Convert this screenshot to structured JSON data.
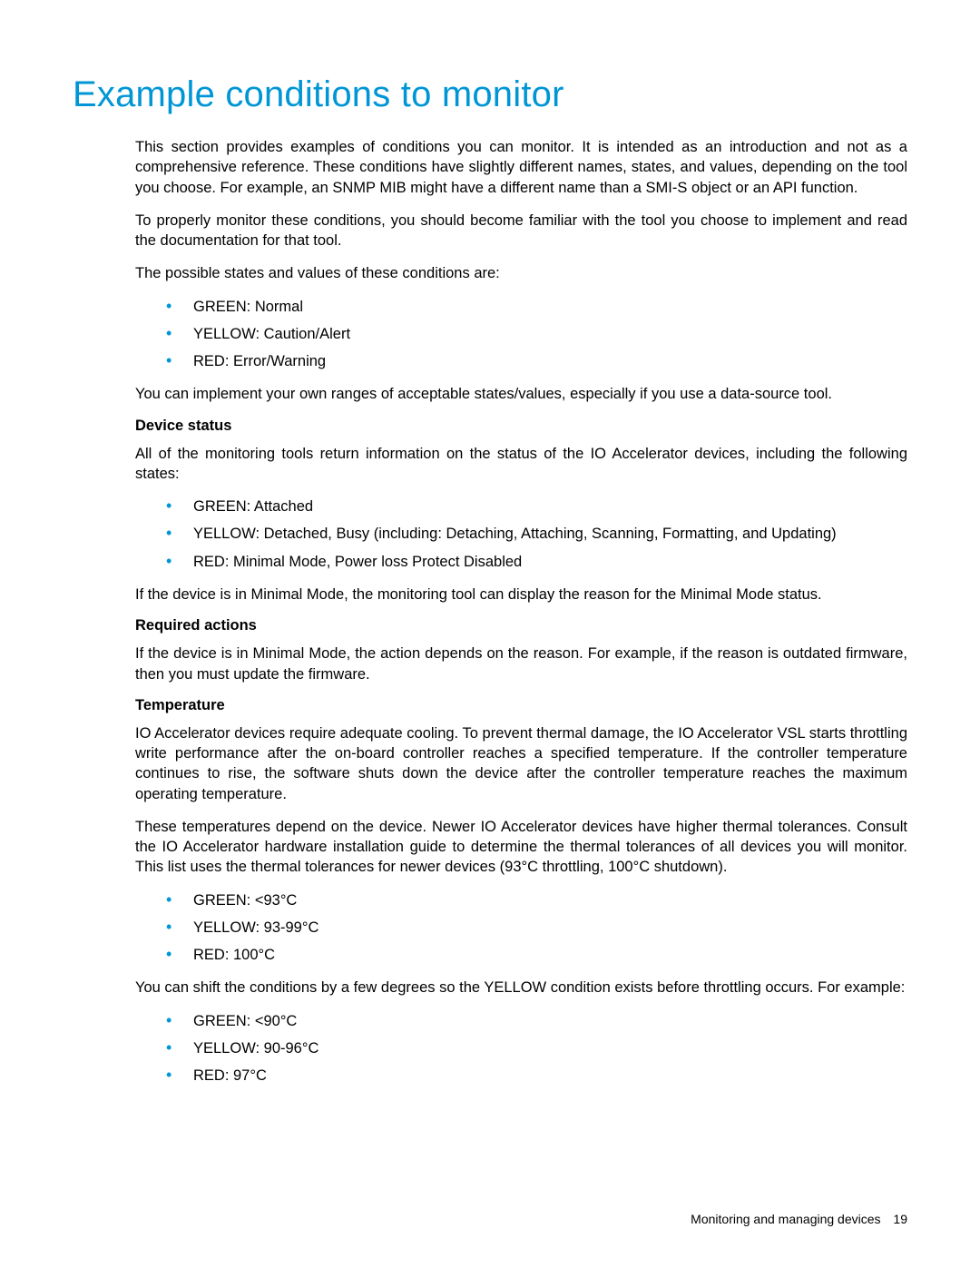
{
  "colors": {
    "brand_blue": "#0096d6",
    "text_black": "#000000",
    "background": "#ffffff"
  },
  "typography": {
    "title_fontsize": 40,
    "body_fontsize": 16.5,
    "footer_fontsize": 14
  },
  "title": "Example conditions to monitor",
  "paragraphs_intro": [
    "This section provides examples of conditions you can monitor. It is intended as an introduction and not as a comprehensive reference. These conditions have slightly different names, states, and values, depending on the tool you choose. For example, an SNMP MIB might have a different name than a SMI-S object or an API function.",
    "To properly monitor these conditions, you should become familiar with the tool you choose to implement and read the documentation for that tool.",
    "The possible states and values of these conditions are:"
  ],
  "list_states": [
    "GREEN: Normal",
    "YELLOW: Caution/Alert",
    "RED: Error/Warning"
  ],
  "paragraph_after_states": "You can implement your own ranges of acceptable states/values, especially if you use a data-source tool.",
  "sections": {
    "device_status": {
      "heading": "Device status",
      "intro": "All of the monitoring tools return information on the status of the IO Accelerator devices, including the following states:",
      "list": [
        "GREEN: Attached",
        "YELLOW: Detached, Busy (including: Detaching, Attaching, Scanning, Formatting, and Updating)",
        "RED: Minimal Mode, Power loss Protect Disabled"
      ],
      "outro": "If the device is in Minimal Mode, the monitoring tool can display the reason for the Minimal Mode status."
    },
    "required_actions": {
      "heading": "Required actions",
      "text": "If the device is in Minimal Mode, the action depends on the reason. For example, if the reason is outdated firmware, then you must update the firmware."
    },
    "temperature": {
      "heading": "Temperature",
      "paragraphs": [
        "IO Accelerator devices require adequate cooling. To prevent thermal damage, the IO Accelerator VSL starts throttling write performance after the on-board controller reaches a specified temperature. If the controller temperature continues to rise, the software shuts down the device after the controller temperature reaches the maximum operating temperature.",
        "These temperatures depend on the device. Newer IO Accelerator devices have higher thermal tolerances. Consult the IO Accelerator hardware installation guide to determine the thermal tolerances of all devices you will monitor. This list uses the thermal tolerances for newer devices (93°C throttling, 100°C shutdown)."
      ],
      "list1": [
        "GREEN: <93°C",
        "YELLOW: 93-99°C",
        "RED: 100°C"
      ],
      "shift_text": "You can shift the conditions by a few degrees so the YELLOW condition exists before throttling occurs. For example:",
      "list2": [
        "GREEN: <90°C",
        "YELLOW: 90-96°C",
        "RED: 97°C"
      ]
    }
  },
  "footer": {
    "text": "Monitoring and managing devices",
    "page": "19"
  }
}
